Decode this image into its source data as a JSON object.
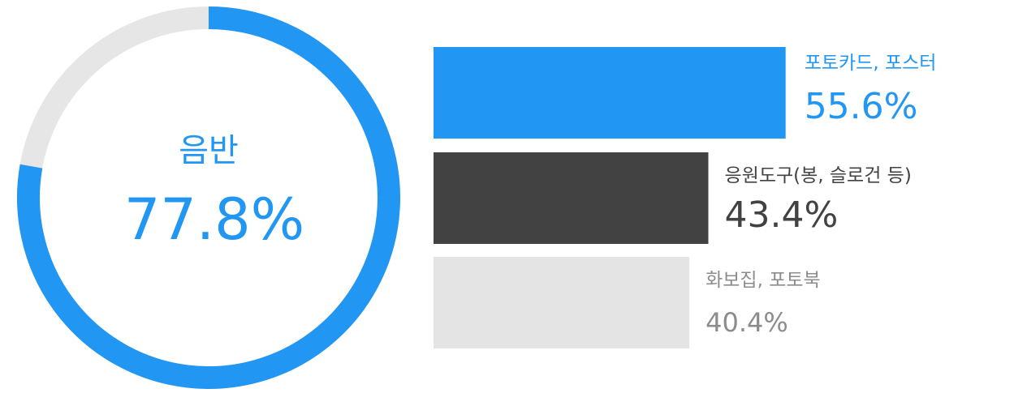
{
  "chart_data": [
    {
      "type": "pie",
      "variant": "donut",
      "label": "음반",
      "value_label": "77.8%",
      "value": 77.8,
      "max": 100,
      "colors": {
        "fill": "#2196F3",
        "track": "#E6E6E6",
        "text": "#2196F3"
      }
    },
    {
      "type": "bar",
      "orientation": "horizontal",
      "xlim": [
        0,
        100
      ],
      "categories": [
        "포토카드, 포스터",
        "응원도구(봉, 슬로건 등)",
        "화보집, 포토북"
      ],
      "values": [
        55.6,
        43.4,
        40.4
      ],
      "value_labels": [
        "55.6%",
        "43.4%",
        "40.4%"
      ],
      "bar_colors": [
        "#2196F3",
        "#424242",
        "#E4E4E4"
      ],
      "text_colors": [
        "#2196F3",
        "#424242",
        "#8C8C8C"
      ]
    }
  ]
}
